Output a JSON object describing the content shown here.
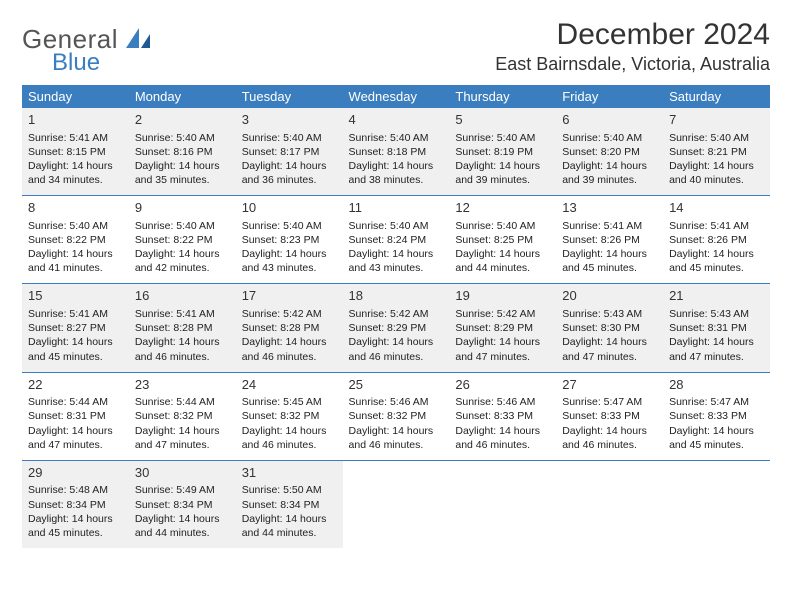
{
  "logo": {
    "text1": "General",
    "text2": "Blue"
  },
  "title": "December 2024",
  "location": "East Bairnsdale, Victoria, Australia",
  "dow": [
    "Sunday",
    "Monday",
    "Tuesday",
    "Wednesday",
    "Thursday",
    "Friday",
    "Saturday"
  ],
  "colors": {
    "accent": "#3a7ebf",
    "shade": "#f0f0f0",
    "text": "#222222",
    "bg": "#ffffff"
  },
  "weeks": [
    [
      {
        "n": "1",
        "sr": "5:41 AM",
        "ss": "8:15 PM",
        "dl": "14 hours and 34 minutes."
      },
      {
        "n": "2",
        "sr": "5:40 AM",
        "ss": "8:16 PM",
        "dl": "14 hours and 35 minutes."
      },
      {
        "n": "3",
        "sr": "5:40 AM",
        "ss": "8:17 PM",
        "dl": "14 hours and 36 minutes."
      },
      {
        "n": "4",
        "sr": "5:40 AM",
        "ss": "8:18 PM",
        "dl": "14 hours and 38 minutes."
      },
      {
        "n": "5",
        "sr": "5:40 AM",
        "ss": "8:19 PM",
        "dl": "14 hours and 39 minutes."
      },
      {
        "n": "6",
        "sr": "5:40 AM",
        "ss": "8:20 PM",
        "dl": "14 hours and 39 minutes."
      },
      {
        "n": "7",
        "sr": "5:40 AM",
        "ss": "8:21 PM",
        "dl": "14 hours and 40 minutes."
      }
    ],
    [
      {
        "n": "8",
        "sr": "5:40 AM",
        "ss": "8:22 PM",
        "dl": "14 hours and 41 minutes."
      },
      {
        "n": "9",
        "sr": "5:40 AM",
        "ss": "8:22 PM",
        "dl": "14 hours and 42 minutes."
      },
      {
        "n": "10",
        "sr": "5:40 AM",
        "ss": "8:23 PM",
        "dl": "14 hours and 43 minutes."
      },
      {
        "n": "11",
        "sr": "5:40 AM",
        "ss": "8:24 PM",
        "dl": "14 hours and 43 minutes."
      },
      {
        "n": "12",
        "sr": "5:40 AM",
        "ss": "8:25 PM",
        "dl": "14 hours and 44 minutes."
      },
      {
        "n": "13",
        "sr": "5:41 AM",
        "ss": "8:26 PM",
        "dl": "14 hours and 45 minutes."
      },
      {
        "n": "14",
        "sr": "5:41 AM",
        "ss": "8:26 PM",
        "dl": "14 hours and 45 minutes."
      }
    ],
    [
      {
        "n": "15",
        "sr": "5:41 AM",
        "ss": "8:27 PM",
        "dl": "14 hours and 45 minutes."
      },
      {
        "n": "16",
        "sr": "5:41 AM",
        "ss": "8:28 PM",
        "dl": "14 hours and 46 minutes."
      },
      {
        "n": "17",
        "sr": "5:42 AM",
        "ss": "8:28 PM",
        "dl": "14 hours and 46 minutes."
      },
      {
        "n": "18",
        "sr": "5:42 AM",
        "ss": "8:29 PM",
        "dl": "14 hours and 46 minutes."
      },
      {
        "n": "19",
        "sr": "5:42 AM",
        "ss": "8:29 PM",
        "dl": "14 hours and 47 minutes."
      },
      {
        "n": "20",
        "sr": "5:43 AM",
        "ss": "8:30 PM",
        "dl": "14 hours and 47 minutes."
      },
      {
        "n": "21",
        "sr": "5:43 AM",
        "ss": "8:31 PM",
        "dl": "14 hours and 47 minutes."
      }
    ],
    [
      {
        "n": "22",
        "sr": "5:44 AM",
        "ss": "8:31 PM",
        "dl": "14 hours and 47 minutes."
      },
      {
        "n": "23",
        "sr": "5:44 AM",
        "ss": "8:32 PM",
        "dl": "14 hours and 47 minutes."
      },
      {
        "n": "24",
        "sr": "5:45 AM",
        "ss": "8:32 PM",
        "dl": "14 hours and 46 minutes."
      },
      {
        "n": "25",
        "sr": "5:46 AM",
        "ss": "8:32 PM",
        "dl": "14 hours and 46 minutes."
      },
      {
        "n": "26",
        "sr": "5:46 AM",
        "ss": "8:33 PM",
        "dl": "14 hours and 46 minutes."
      },
      {
        "n": "27",
        "sr": "5:47 AM",
        "ss": "8:33 PM",
        "dl": "14 hours and 46 minutes."
      },
      {
        "n": "28",
        "sr": "5:47 AM",
        "ss": "8:33 PM",
        "dl": "14 hours and 45 minutes."
      }
    ],
    [
      {
        "n": "29",
        "sr": "5:48 AM",
        "ss": "8:34 PM",
        "dl": "14 hours and 45 minutes."
      },
      {
        "n": "30",
        "sr": "5:49 AM",
        "ss": "8:34 PM",
        "dl": "14 hours and 44 minutes."
      },
      {
        "n": "31",
        "sr": "5:50 AM",
        "ss": "8:34 PM",
        "dl": "14 hours and 44 minutes."
      },
      null,
      null,
      null,
      null
    ]
  ],
  "labels": {
    "sunrise": "Sunrise:",
    "sunset": "Sunset:",
    "daylight": "Daylight:"
  }
}
